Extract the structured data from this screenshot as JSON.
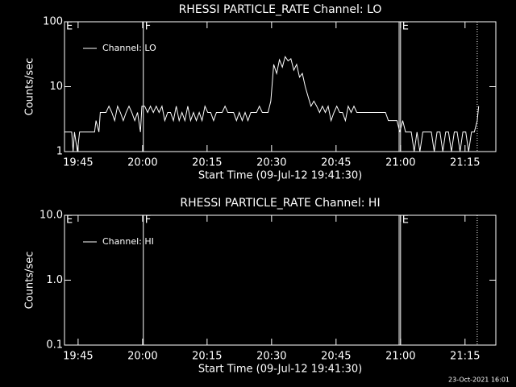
{
  "chart_data": [
    {
      "type": "line",
      "title": "RHESSI PARTICLE_RATE Channel: LO",
      "xlabel": "Start Time (09-Jul-12 19:41:30)",
      "ylabel": "Counts/sec",
      "xlim": [
        20,
        6040
      ],
      "xticks": [
        {
          "value": 210,
          "label": "19:45"
        },
        {
          "value": 1110,
          "label": "20:00"
        },
        {
          "value": 2010,
          "label": "20:15"
        },
        {
          "value": 2910,
          "label": "20:30"
        },
        {
          "value": 3810,
          "label": "20:45"
        },
        {
          "value": 4710,
          "label": "21:00"
        },
        {
          "value": 5610,
          "label": "21:15"
        }
      ],
      "ylim": [
        1,
        100
      ],
      "yticks": [
        1,
        10,
        100
      ],
      "log_y": true,
      "markers": [
        {
          "x": 20,
          "label": "E",
          "style": "solid"
        },
        {
          "x": 1120,
          "label": "F",
          "style": "solid"
        },
        {
          "x": 4690,
          "label": null,
          "style": "solid"
        },
        {
          "x": 4710,
          "label": "E",
          "style": "solid"
        },
        {
          "x": 5780,
          "label": null,
          "style": "dotted"
        }
      ],
      "series": [
        {
          "name": "Channel: LO",
          "color": "#ffffff",
          "x": [
            20,
            120,
            140,
            160,
            200,
            230,
            440,
            460,
            500,
            520,
            600,
            640,
            680,
            720,
            760,
            800,
            840,
            880,
            920,
            960,
            1000,
            1040,
            1080,
            1100,
            1140,
            1180,
            1220,
            1260,
            1300,
            1340,
            1380,
            1420,
            1460,
            1500,
            1540,
            1580,
            1620,
            1660,
            1700,
            1740,
            1780,
            1820,
            1860,
            1900,
            1940,
            1980,
            2020,
            2060,
            2100,
            2140,
            2180,
            2220,
            2260,
            2300,
            2340,
            2380,
            2420,
            2460,
            2500,
            2540,
            2580,
            2620,
            2660,
            2700,
            2740,
            2780,
            2820,
            2860,
            2900,
            2940,
            2980,
            3020,
            3060,
            3100,
            3140,
            3180,
            3220,
            3260,
            3300,
            3340,
            3380,
            3420,
            3460,
            3500,
            3540,
            3580,
            3620,
            3660,
            3700,
            3740,
            3780,
            3820,
            3860,
            3900,
            3940,
            3980,
            4020,
            4060,
            4100,
            4140,
            4180,
            4220,
            4260,
            4300,
            4340,
            4380,
            4420,
            4460,
            4500,
            4540,
            4580,
            4620,
            4660,
            4700,
            4740,
            4780,
            4820,
            4860,
            4900,
            4940,
            4980,
            5020,
            5060,
            5100,
            5140,
            5180,
            5220,
            5260,
            5300,
            5340,
            5380,
            5420,
            5460,
            5500,
            5540,
            5580,
            5620,
            5660,
            5700,
            5740,
            5780,
            5800
          ],
          "values": [
            2,
            2,
            1,
            2,
            1,
            2,
            2,
            3,
            2,
            4,
            4,
            5,
            4,
            3,
            5,
            4,
            3,
            4,
            5,
            4,
            3,
            4,
            2,
            5,
            5,
            4,
            5,
            4,
            5,
            4,
            5,
            3,
            4,
            4,
            3,
            5,
            3,
            4,
            3,
            5,
            3,
            4,
            3,
            4,
            3,
            5,
            4,
            4,
            3,
            4,
            4,
            4,
            5,
            4,
            4,
            4,
            3,
            4,
            3,
            4,
            3,
            4,
            4,
            4,
            5,
            4,
            4,
            4,
            6,
            22,
            16,
            26,
            20,
            29,
            25,
            27,
            18,
            22,
            14,
            16,
            10,
            7,
            5,
            6,
            5,
            4,
            5,
            4,
            5,
            3,
            4,
            5,
            4,
            4,
            3,
            5,
            4,
            5,
            4,
            4,
            4,
            4,
            4,
            4,
            4,
            4,
            4,
            4,
            4,
            3,
            3,
            3,
            3,
            2,
            3,
            2,
            2,
            2,
            1,
            2,
            1,
            2,
            2,
            2,
            2,
            1,
            2,
            2,
            1,
            2,
            2,
            1,
            2,
            2,
            1,
            2,
            2,
            1,
            2,
            2,
            3,
            5
          ]
        }
      ]
    },
    {
      "type": "line",
      "title": "RHESSI PARTICLE_RATE Channel: HI",
      "xlabel": "Start Time (09-Jul-12 19:41:30)",
      "ylabel": "Counts/sec",
      "xlim": [
        20,
        6040
      ],
      "xticks": [
        {
          "value": 210,
          "label": "19:45"
        },
        {
          "value": 1110,
          "label": "20:00"
        },
        {
          "value": 2010,
          "label": "20:15"
        },
        {
          "value": 2910,
          "label": "20:30"
        },
        {
          "value": 3810,
          "label": "20:45"
        },
        {
          "value": 4710,
          "label": "21:00"
        },
        {
          "value": 5610,
          "label": "21:15"
        }
      ],
      "ylim": [
        0.1,
        10
      ],
      "yticks": [
        0.1,
        {
          "value": 1,
          "label": "1.0"
        },
        {
          "value": 10,
          "label": "10.0"
        }
      ],
      "log_y": true,
      "markers": [
        {
          "x": 20,
          "label": "E",
          "style": "solid"
        },
        {
          "x": 1120,
          "label": "F",
          "style": "solid"
        },
        {
          "x": 4690,
          "label": null,
          "style": "solid"
        },
        {
          "x": 4710,
          "label": "E",
          "style": "solid"
        },
        {
          "x": 5780,
          "label": null,
          "style": "dotted"
        }
      ],
      "series": [
        {
          "name": "Channel: HI",
          "color": "#ffffff",
          "x": [],
          "values": []
        }
      ]
    }
  ],
  "footer": "23-Oct-2021 16:01"
}
